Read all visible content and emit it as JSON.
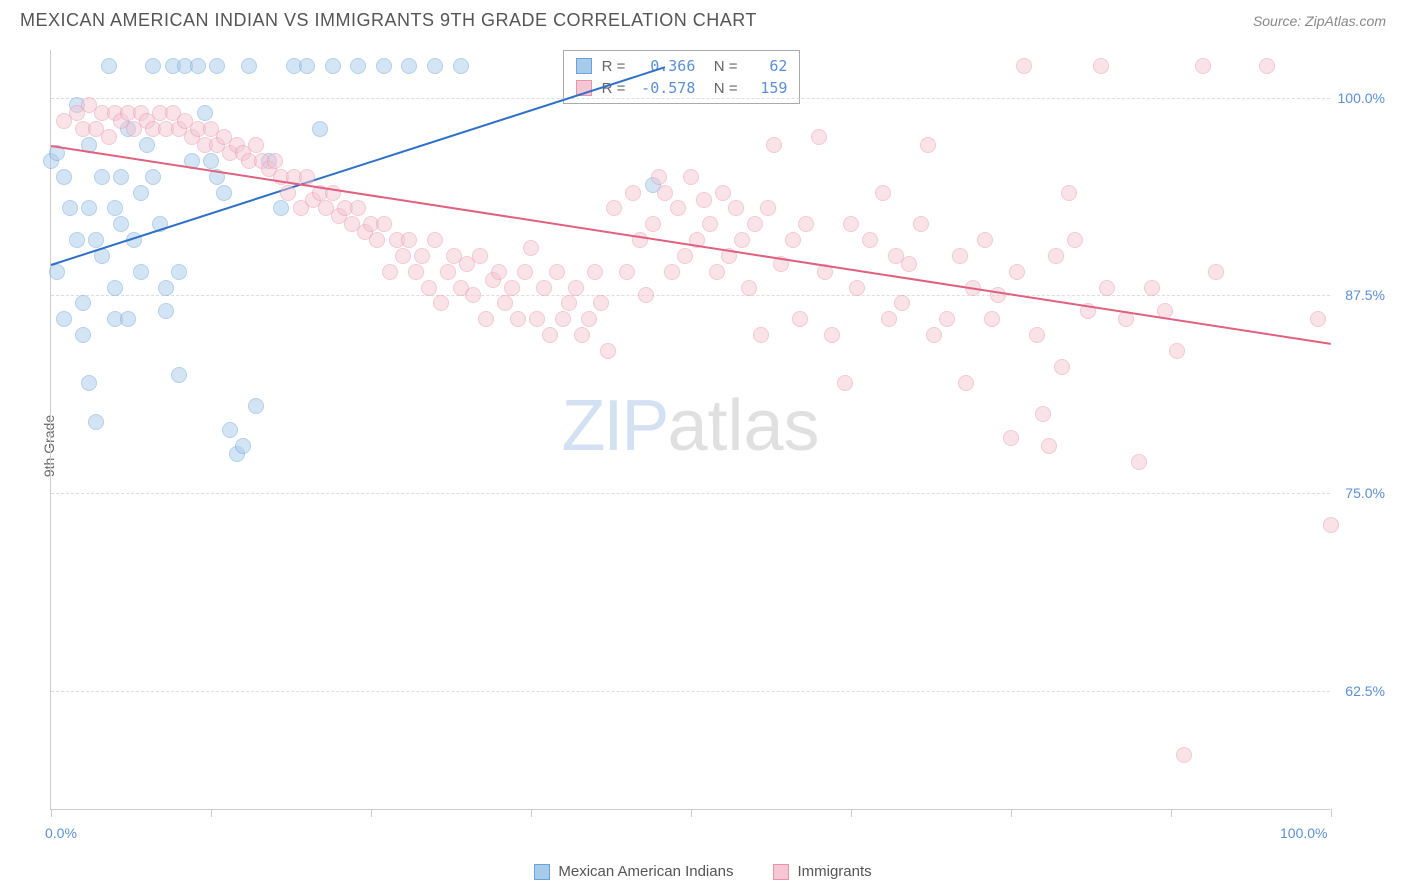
{
  "title": "MEXICAN AMERICAN INDIAN VS IMMIGRANTS 9TH GRADE CORRELATION CHART",
  "source": "Source: ZipAtlas.com",
  "yaxis_title": "9th Grade",
  "watermark": {
    "left": "ZIP",
    "right": "atlas"
  },
  "chart": {
    "type": "scatter",
    "xlim": [
      0,
      100
    ],
    "ylim": [
      55,
      103
    ],
    "yticks": [
      {
        "value": 62.5,
        "label": "62.5%"
      },
      {
        "value": 75.0,
        "label": "75.0%"
      },
      {
        "value": 87.5,
        "label": "87.5%"
      },
      {
        "value": 100.0,
        "label": "100.0%"
      }
    ],
    "xticks": [
      0,
      12.5,
      25,
      37.5,
      50,
      62.5,
      75,
      87.5,
      100
    ],
    "xlabels": [
      {
        "value": 0,
        "label": "0.0%"
      },
      {
        "value": 100,
        "label": "100.0%"
      }
    ],
    "background_color": "#ffffff",
    "grid_color": "#dddddd",
    "point_radius": 8,
    "point_opacity": 0.5,
    "point_stroke_width": 1.5,
    "series": [
      {
        "name": "Mexican American Indians",
        "fill_color": "#a9cbeb",
        "stroke_color": "#6ba3d6",
        "trend_color": "#2e6fc7",
        "R": "0.366",
        "N": "62",
        "trendline": {
          "x1": 0,
          "y1": 89.5,
          "x2": 48,
          "y2": 102
        },
        "points": [
          [
            0,
            96
          ],
          [
            0.5,
            96.5
          ],
          [
            0.5,
            89
          ],
          [
            1,
            95
          ],
          [
            1,
            86
          ],
          [
            1.5,
            93
          ],
          [
            2,
            99.5
          ],
          [
            2,
            91
          ],
          [
            2.5,
            87
          ],
          [
            2.5,
            85
          ],
          [
            3,
            93
          ],
          [
            3,
            97
          ],
          [
            3,
            82
          ],
          [
            3.5,
            79.5
          ],
          [
            3.5,
            91
          ],
          [
            4,
            95
          ],
          [
            4,
            90
          ],
          [
            4.5,
            102
          ],
          [
            5,
            93
          ],
          [
            5,
            88
          ],
          [
            5,
            86
          ],
          [
            5.5,
            95
          ],
          [
            5.5,
            92
          ],
          [
            6,
            98
          ],
          [
            6,
            86
          ],
          [
            6.5,
            91
          ],
          [
            7,
            94
          ],
          [
            7,
            89
          ],
          [
            7.5,
            97
          ],
          [
            8,
            102
          ],
          [
            8,
            95
          ],
          [
            8.5,
            92
          ],
          [
            9,
            86.5
          ],
          [
            9,
            88
          ],
          [
            9.5,
            102
          ],
          [
            10,
            82.5
          ],
          [
            10,
            89
          ],
          [
            10.5,
            102
          ],
          [
            11,
            96
          ],
          [
            11.5,
            102
          ],
          [
            12,
            99
          ],
          [
            12.5,
            96
          ],
          [
            13,
            102
          ],
          [
            13,
            95
          ],
          [
            13.5,
            94
          ],
          [
            14,
            79
          ],
          [
            14.5,
            77.5
          ],
          [
            15,
            78
          ],
          [
            15.5,
            102
          ],
          [
            16,
            80.5
          ],
          [
            17,
            96
          ],
          [
            18,
            93
          ],
          [
            19,
            102
          ],
          [
            20,
            102
          ],
          [
            21,
            98
          ],
          [
            22,
            102
          ],
          [
            24,
            102
          ],
          [
            26,
            102
          ],
          [
            28,
            102
          ],
          [
            30,
            102
          ],
          [
            32,
            102
          ],
          [
            47,
            94.5
          ]
        ]
      },
      {
        "name": "Immigrants",
        "fill_color": "#f5c6d3",
        "stroke_color": "#e594ab",
        "trend_color": "#e0607f",
        "R": "-0.578",
        "N": "159",
        "trendline": {
          "x1": 0,
          "y1": 97,
          "x2": 100,
          "y2": 84.5
        },
        "points": [
          [
            1,
            98.5
          ],
          [
            2,
            99
          ],
          [
            2.5,
            98
          ],
          [
            3,
            99.5
          ],
          [
            3.5,
            98
          ],
          [
            4,
            99
          ],
          [
            4.5,
            97.5
          ],
          [
            5,
            99
          ],
          [
            5.5,
            98.5
          ],
          [
            6,
            99
          ],
          [
            6.5,
            98
          ],
          [
            7,
            99
          ],
          [
            7.5,
            98.5
          ],
          [
            8,
            98
          ],
          [
            8.5,
            99
          ],
          [
            9,
            98
          ],
          [
            9.5,
            99
          ],
          [
            10,
            98
          ],
          [
            10.5,
            98.5
          ],
          [
            11,
            97.5
          ],
          [
            11.5,
            98
          ],
          [
            12,
            97
          ],
          [
            12.5,
            98
          ],
          [
            13,
            97
          ],
          [
            13.5,
            97.5
          ],
          [
            14,
            96.5
          ],
          [
            14.5,
            97
          ],
          [
            15,
            96.5
          ],
          [
            15.5,
            96
          ],
          [
            16,
            97
          ],
          [
            16.5,
            96
          ],
          [
            17,
            95.5
          ],
          [
            17.5,
            96
          ],
          [
            18,
            95
          ],
          [
            18.5,
            94
          ],
          [
            19,
            95
          ],
          [
            19.5,
            93
          ],
          [
            20,
            95
          ],
          [
            20.5,
            93.5
          ],
          [
            21,
            94
          ],
          [
            21.5,
            93
          ],
          [
            22,
            94
          ],
          [
            22.5,
            92.5
          ],
          [
            23,
            93
          ],
          [
            23.5,
            92
          ],
          [
            24,
            93
          ],
          [
            24.5,
            91.5
          ],
          [
            25,
            92
          ],
          [
            25.5,
            91
          ],
          [
            26,
            92
          ],
          [
            26.5,
            89
          ],
          [
            27,
            91
          ],
          [
            27.5,
            90
          ],
          [
            28,
            91
          ],
          [
            28.5,
            89
          ],
          [
            29,
            90
          ],
          [
            29.5,
            88
          ],
          [
            30,
            91
          ],
          [
            30.5,
            87
          ],
          [
            31,
            89
          ],
          [
            31.5,
            90
          ],
          [
            32,
            88
          ],
          [
            32.5,
            89.5
          ],
          [
            33,
            87.5
          ],
          [
            33.5,
            90
          ],
          [
            34,
            86
          ],
          [
            34.5,
            88.5
          ],
          [
            35,
            89
          ],
          [
            35.5,
            87
          ],
          [
            36,
            88
          ],
          [
            36.5,
            86
          ],
          [
            37,
            89
          ],
          [
            37.5,
            90.5
          ],
          [
            38,
            86
          ],
          [
            38.5,
            88
          ],
          [
            39,
            85
          ],
          [
            39.5,
            89
          ],
          [
            40,
            86
          ],
          [
            40.5,
            87
          ],
          [
            41,
            88
          ],
          [
            41.5,
            85
          ],
          [
            42,
            86
          ],
          [
            42.5,
            89
          ],
          [
            43,
            87
          ],
          [
            43.5,
            84
          ],
          [
            44,
            93
          ],
          [
            45,
            89
          ],
          [
            45.5,
            94
          ],
          [
            46,
            91
          ],
          [
            46.5,
            87.5
          ],
          [
            47,
            92
          ],
          [
            47.5,
            95
          ],
          [
            48,
            94
          ],
          [
            48.5,
            89
          ],
          [
            49,
            93
          ],
          [
            49.5,
            90
          ],
          [
            50,
            95
          ],
          [
            50.5,
            91
          ],
          [
            51,
            93.5
          ],
          [
            51.5,
            92
          ],
          [
            52,
            89
          ],
          [
            52.5,
            94
          ],
          [
            53,
            90
          ],
          [
            53.5,
            93
          ],
          [
            54,
            91
          ],
          [
            54.5,
            88
          ],
          [
            55,
            92
          ],
          [
            55.5,
            85
          ],
          [
            56,
            93
          ],
          [
            56.5,
            97
          ],
          [
            57,
            89.5
          ],
          [
            58,
            91
          ],
          [
            58.5,
            86
          ],
          [
            59,
            92
          ],
          [
            60,
            97.5
          ],
          [
            60.5,
            89
          ],
          [
            61,
            85
          ],
          [
            62,
            82
          ],
          [
            62.5,
            92
          ],
          [
            63,
            88
          ],
          [
            64,
            91
          ],
          [
            65,
            94
          ],
          [
            65.5,
            86
          ],
          [
            66,
            90
          ],
          [
            66.5,
            87
          ],
          [
            67,
            89.5
          ],
          [
            68,
            92
          ],
          [
            68.5,
            97
          ],
          [
            69,
            85
          ],
          [
            70,
            86
          ],
          [
            71,
            90
          ],
          [
            71.5,
            82
          ],
          [
            72,
            88
          ],
          [
            73,
            91
          ],
          [
            73.5,
            86
          ],
          [
            74,
            87.5
          ],
          [
            75,
            78.5
          ],
          [
            75.5,
            89
          ],
          [
            76,
            102
          ],
          [
            77,
            85
          ],
          [
            77.5,
            80
          ],
          [
            78,
            78
          ],
          [
            78.5,
            90
          ],
          [
            79,
            83
          ],
          [
            79.5,
            94
          ],
          [
            80,
            91
          ],
          [
            81,
            86.5
          ],
          [
            82,
            102
          ],
          [
            82.5,
            88
          ],
          [
            84,
            86
          ],
          [
            85,
            77
          ],
          [
            86,
            88
          ],
          [
            87,
            86.5
          ],
          [
            88,
            84
          ],
          [
            88.5,
            58.5
          ],
          [
            90,
            102
          ],
          [
            91,
            89
          ],
          [
            95,
            102
          ],
          [
            99,
            86
          ],
          [
            100,
            73
          ]
        ]
      }
    ]
  },
  "legend": [
    {
      "label": "Mexican American Indians",
      "fill": "#a9cbeb",
      "stroke": "#6ba3d6"
    },
    {
      "label": "Immigrants",
      "fill": "#f5c6d3",
      "stroke": "#e594ab"
    }
  ]
}
